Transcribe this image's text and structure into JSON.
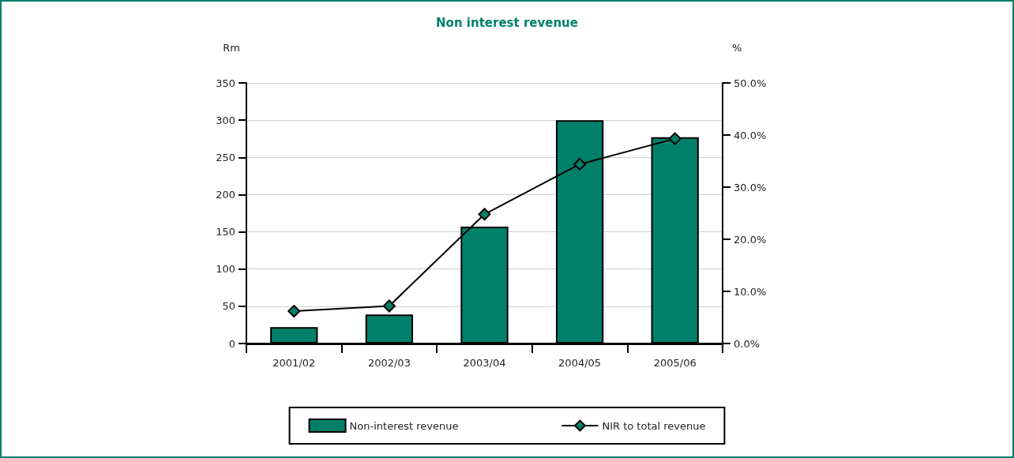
{
  "chart_data": {
    "type": "bar",
    "title": "Non interest revenue",
    "ylabel": "Rm",
    "y2label": "%",
    "categories": [
      "2001/02",
      "2002/03",
      "2003/04",
      "2004/05",
      "2005/06"
    ],
    "series": [
      {
        "name": "Non-interest revenue",
        "color": "#00806a",
        "values": [
          22,
          39,
          157,
          300,
          277
        ]
      },
      {
        "name": "NIR to total revenue",
        "type": "line",
        "axis": "y2",
        "color": "#00806a",
        "marker": "diamond",
        "values": [
          6.2,
          7.2,
          24.8,
          34.4,
          39.3
        ]
      }
    ],
    "ylim": [
      0,
      350
    ],
    "yticks": [
      0,
      50,
      100,
      150,
      200,
      250,
      300,
      350
    ],
    "y2lim": [
      0,
      50
    ],
    "y2ticks": [
      {
        "value": 0,
        "label": "0.0%"
      },
      {
        "value": 10,
        "label": "10.0%"
      },
      {
        "value": 20,
        "label": "20.0%"
      },
      {
        "value": 30,
        "label": "30.0%"
      },
      {
        "value": 40,
        "label": "40.0%"
      },
      {
        "value": 50,
        "label": "50.0%"
      }
    ],
    "grid": "y",
    "legend": "bottom"
  }
}
